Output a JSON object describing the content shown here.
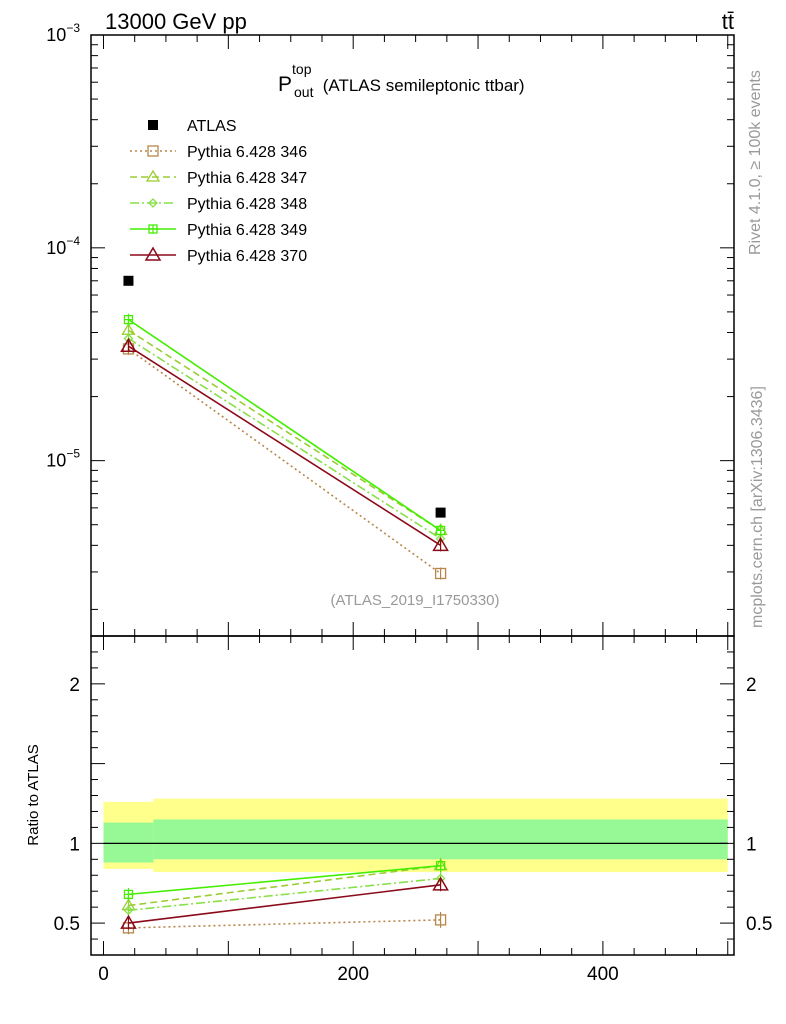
{
  "header": {
    "energy_label": "13000 GeV pp",
    "process_label": "tt̄"
  },
  "side_text": {
    "rivet": "Rivet 4.1.0, ≥ 100k events",
    "mcplots": "mcplots.cern.ch [arXiv:1306.3436]"
  },
  "chart_data": [
    {
      "panel": "main",
      "type": "line",
      "title_main": "P",
      "title_sup": "top",
      "title_sub": "out",
      "title_rest": " (ATLAS semileptonic ttbar)",
      "analysis_label": "(ATLAS_2019_I1750330)",
      "yscale": "log",
      "ylim": [
        1.5e-06,
        0.001
      ],
      "xlim": [
        -10,
        505
      ],
      "y_tick_labels": [
        {
          "base": "10",
          "exp": "−3",
          "value": 0.001
        },
        {
          "base": "10",
          "exp": "−4",
          "value": 0.0001
        },
        {
          "base": "10",
          "exp": "−5",
          "value": 1e-05
        }
      ],
      "legend_position": "top-left",
      "data": {
        "name": "ATLAS",
        "color": "#000000",
        "points": [
          {
            "x": 20,
            "xerr": [
              0,
              40
            ],
            "y": 7e-05
          },
          {
            "x": 270,
            "xerr": [
              40,
              500
            ],
            "y": 5.7e-06
          }
        ]
      },
      "series": [
        {
          "name": "Pythia 6.428 346",
          "color": "#b8864b",
          "dash": "2,3",
          "marker": "square",
          "x": [
            20,
            270
          ],
          "y": [
            3.35e-05,
            2.95e-06
          ]
        },
        {
          "name": "Pythia 6.428 347",
          "color": "#9acd32",
          "dash": "7,4",
          "marker": "triangle",
          "x": [
            20,
            270
          ],
          "y": [
            4.1e-05,
            4.7e-06
          ]
        },
        {
          "name": "Pythia 6.428 348",
          "color": "#88e048",
          "dash": "9,3,2,3",
          "marker": "diamond",
          "x": [
            20,
            270
          ],
          "y": [
            3.75e-05,
            4.3e-06
          ]
        },
        {
          "name": "Pythia 6.428 349",
          "color": "#44ee00",
          "dash": "",
          "marker": "cross-square",
          "x": [
            20,
            270
          ],
          "y": [
            4.6e-05,
            4.7e-06
          ]
        },
        {
          "name": "Pythia 6.428 370",
          "color": "#8b0a1a",
          "dash": "",
          "marker": "triangle-open",
          "x": [
            20,
            270
          ],
          "y": [
            3.45e-05,
            4e-06
          ]
        }
      ]
    },
    {
      "panel": "ratio",
      "type": "line",
      "ylabel": "Ratio to ATLAS",
      "ylim": [
        0.3,
        2.3
      ],
      "y_ticks": [
        0.5,
        1,
        2
      ],
      "y_tick_labels": [
        "0.5",
        "1",
        "2"
      ],
      "xlim": [
        -10,
        505
      ],
      "x_ticks": [
        0,
        200,
        400
      ],
      "x_tick_labels": [
        "0",
        "200",
        "400"
      ],
      "bands": [
        {
          "x0": 0,
          "x1": 40,
          "stat": [
            0.88,
            1.13
          ],
          "total": [
            0.84,
            1.26
          ]
        },
        {
          "x0": 40,
          "x1": 500,
          "stat": [
            0.9,
            1.15
          ],
          "total": [
            0.82,
            1.28
          ]
        }
      ],
      "series": [
        {
          "name": "Pythia 6.428 346",
          "y": [
            0.47,
            0.52
          ],
          "err": [
            0.04,
            0.05
          ]
        },
        {
          "name": "Pythia 6.428 347",
          "y": [
            0.61,
            0.86
          ],
          "err": [
            0.04,
            0.05
          ]
        },
        {
          "name": "Pythia 6.428 348",
          "y": [
            0.58,
            0.78
          ],
          "err": [
            0.03,
            0.04
          ]
        },
        {
          "name": "Pythia 6.428 349",
          "y": [
            0.68,
            0.86
          ],
          "err": [
            0.04,
            0.04
          ]
        },
        {
          "name": "Pythia 6.428 370",
          "y": [
            0.5,
            0.74
          ],
          "err": [
            0.04,
            0.04
          ]
        }
      ]
    }
  ]
}
